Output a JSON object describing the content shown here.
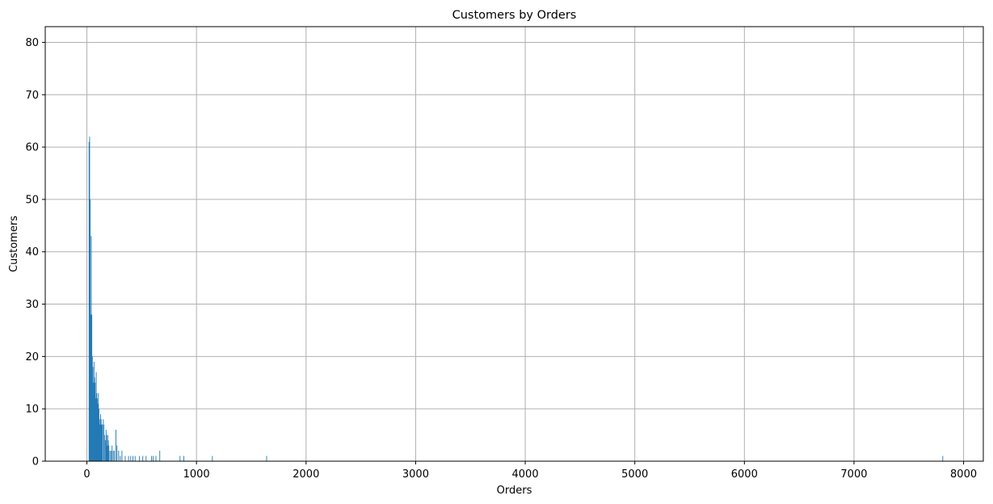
{
  "chart_data": {
    "type": "bar",
    "title": "Customers by Orders",
    "xlabel": "Orders",
    "ylabel": "Customers",
    "xlim": [
      -380,
      8180
    ],
    "ylim": [
      0,
      83
    ],
    "xticks": [
      0,
      1000,
      2000,
      3000,
      4000,
      5000,
      6000,
      7000,
      8000
    ],
    "yticks": [
      0,
      10,
      20,
      30,
      40,
      50,
      60,
      70,
      80
    ],
    "grid": true,
    "bar_color": "#1f77b4",
    "bars": [
      {
        "x": 20,
        "y": 61
      },
      {
        "x": 25,
        "y": 62
      },
      {
        "x": 30,
        "y": 50
      },
      {
        "x": 35,
        "y": 28
      },
      {
        "x": 40,
        "y": 43
      },
      {
        "x": 45,
        "y": 28
      },
      {
        "x": 50,
        "y": 20
      },
      {
        "x": 55,
        "y": 18
      },
      {
        "x": 60,
        "y": 15
      },
      {
        "x": 65,
        "y": 19
      },
      {
        "x": 70,
        "y": 16
      },
      {
        "x": 75,
        "y": 15
      },
      {
        "x": 80,
        "y": 12
      },
      {
        "x": 85,
        "y": 17
      },
      {
        "x": 90,
        "y": 13
      },
      {
        "x": 95,
        "y": 12
      },
      {
        "x": 100,
        "y": 11
      },
      {
        "x": 105,
        "y": 13
      },
      {
        "x": 110,
        "y": 10
      },
      {
        "x": 115,
        "y": 8
      },
      {
        "x": 120,
        "y": 7
      },
      {
        "x": 125,
        "y": 9
      },
      {
        "x": 130,
        "y": 8
      },
      {
        "x": 135,
        "y": 7
      },
      {
        "x": 140,
        "y": 7
      },
      {
        "x": 150,
        "y": 8
      },
      {
        "x": 155,
        "y": 7
      },
      {
        "x": 160,
        "y": 5
      },
      {
        "x": 170,
        "y": 4
      },
      {
        "x": 175,
        "y": 6
      },
      {
        "x": 180,
        "y": 5
      },
      {
        "x": 185,
        "y": 3
      },
      {
        "x": 190,
        "y": 5
      },
      {
        "x": 195,
        "y": 4
      },
      {
        "x": 200,
        "y": 3
      },
      {
        "x": 210,
        "y": 2
      },
      {
        "x": 220,
        "y": 2
      },
      {
        "x": 230,
        "y": 3
      },
      {
        "x": 240,
        "y": 2
      },
      {
        "x": 250,
        "y": 2
      },
      {
        "x": 265,
        "y": 6
      },
      {
        "x": 275,
        "y": 3
      },
      {
        "x": 290,
        "y": 2
      },
      {
        "x": 305,
        "y": 1
      },
      {
        "x": 320,
        "y": 2
      },
      {
        "x": 350,
        "y": 1
      },
      {
        "x": 380,
        "y": 1
      },
      {
        "x": 400,
        "y": 1
      },
      {
        "x": 420,
        "y": 1
      },
      {
        "x": 440,
        "y": 1
      },
      {
        "x": 480,
        "y": 1
      },
      {
        "x": 510,
        "y": 1
      },
      {
        "x": 540,
        "y": 1
      },
      {
        "x": 590,
        "y": 1
      },
      {
        "x": 605,
        "y": 1
      },
      {
        "x": 630,
        "y": 1
      },
      {
        "x": 665,
        "y": 2
      },
      {
        "x": 850,
        "y": 1
      },
      {
        "x": 885,
        "y": 1
      },
      {
        "x": 1145,
        "y": 1
      },
      {
        "x": 1640,
        "y": 1
      },
      {
        "x": 7810,
        "y": 1
      }
    ]
  }
}
